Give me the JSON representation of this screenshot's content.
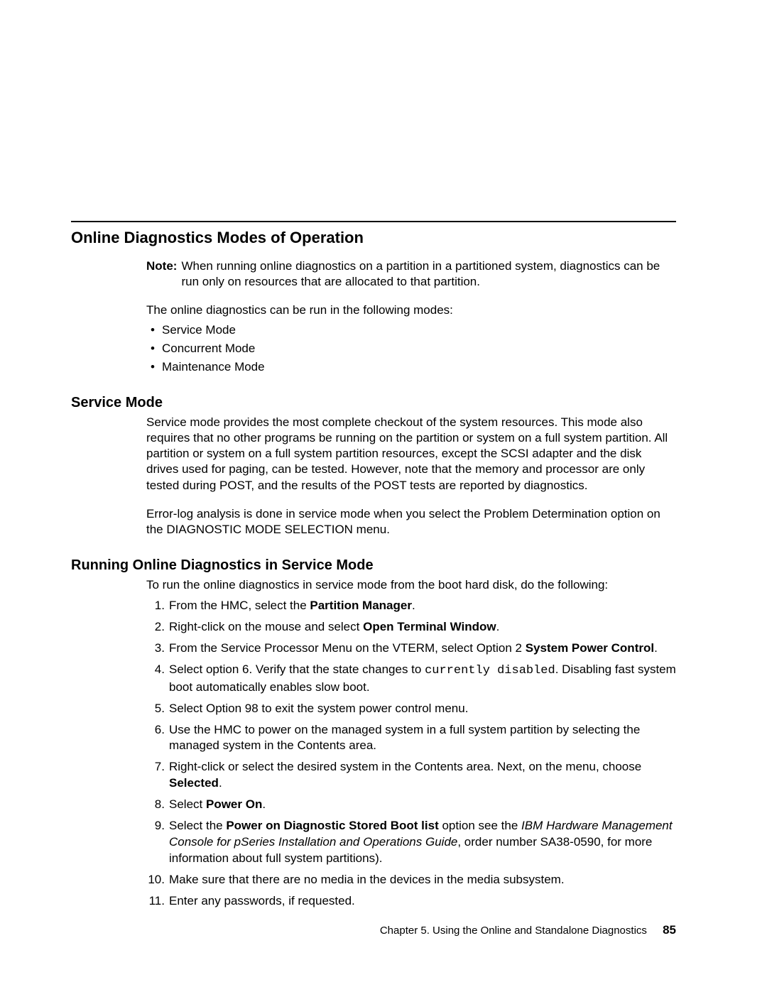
{
  "page": {
    "title": "Online Diagnostics Modes of Operation",
    "noteLabel": "Note:",
    "noteText": "When running online diagnostics on a partition in a partitioned system, diagnostics can be run only on resources that are allocated to that partition.",
    "introText": "The online diagnostics can be run in the following modes:",
    "bullets": [
      "Service Mode",
      "Concurrent Mode",
      "Maintenance Mode"
    ]
  },
  "serviceMode": {
    "heading": "Service Mode",
    "p1": "Service mode provides the most complete checkout of the system resources. This mode also requires that no other programs be running on the partition or system on a full system partition. All partition or system on a full system partition resources, except the SCSI adapter and the disk drives used for paging, can be tested. However, note that the memory and processor are only tested during POST, and the results of the POST tests are reported by diagnostics.",
    "p2": "Error-log analysis is done in service mode when you select the Problem Determination option on the DIAGNOSTIC MODE SELECTION menu."
  },
  "running": {
    "heading": "Running Online Diagnostics in Service Mode",
    "intro": "To run the online diagnostics in service mode from the boot hard disk, do the following:",
    "steps": {
      "s1a": "From the HMC, select the ",
      "s1b": "Partition Manager",
      "s1c": ".",
      "s2a": "Right-click on the mouse and select ",
      "s2b": "Open Terminal Window",
      "s2c": ".",
      "s3a": "From the Service Processor Menu on the VTERM, select Option 2 ",
      "s3b": "System Power Control",
      "s3c": ".",
      "s4a": "Select option 6. Verify that the state changes to ",
      "s4b": "currently disabled",
      "s4c": ". Disabling fast system boot automatically enables slow boot.",
      "s5": "Select Option 98 to exit the system power control menu.",
      "s6": "Use the HMC to power on the managed system in a full system partition by selecting the managed system in the Contents area.",
      "s7a": "Right-click or select the desired system in the Contents area. Next, on the menu, choose ",
      "s7b": "Selected",
      "s7c": ".",
      "s8a": "Select ",
      "s8b": "Power On",
      "s8c": ".",
      "s9a": "Select the ",
      "s9b": "Power on Diagnostic Stored Boot list",
      "s9c": " option see the ",
      "s9d": "IBM Hardware Management Console for pSeries Installation and Operations Guide",
      "s9e": ", order number SA38-0590, for more information about full system partitions).",
      "s10": "Make sure that there are no media in the devices in the media subsystem.",
      "s11": "Enter any passwords, if requested."
    }
  },
  "footer": {
    "chapter": "Chapter 5. Using the Online and Standalone Diagnostics",
    "pageNumber": "85"
  }
}
